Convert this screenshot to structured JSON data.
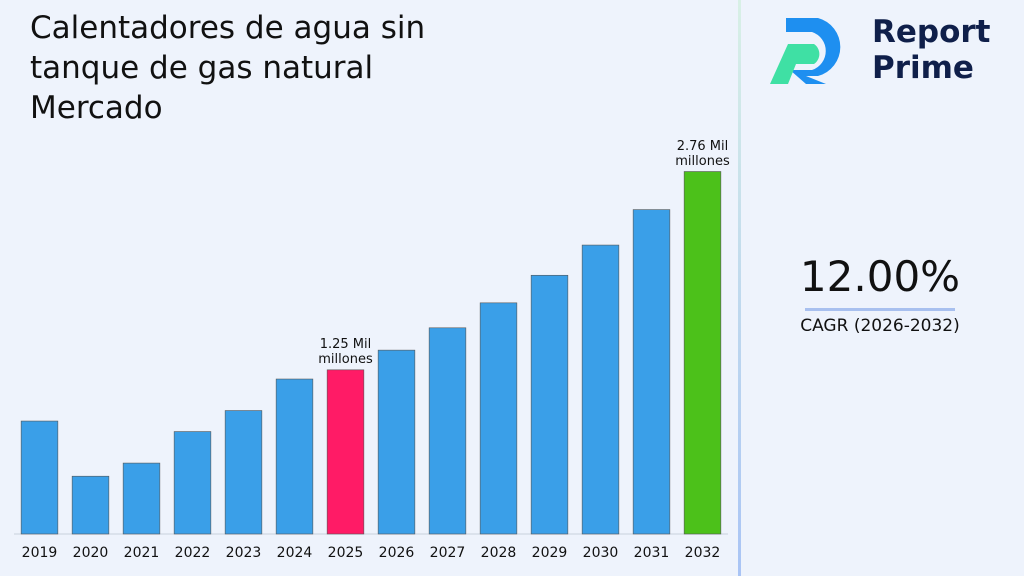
{
  "chart_data": {
    "type": "bar",
    "title": "Calentadores de agua sin tanque de gas natural Mercado",
    "categories": [
      "2019",
      "2020",
      "2021",
      "2022",
      "2023",
      "2024",
      "2025",
      "2026",
      "2027",
      "2028",
      "2029",
      "2030",
      "2031",
      "2032"
    ],
    "values": [
      0.86,
      0.44,
      0.54,
      0.78,
      0.94,
      1.18,
      1.25,
      1.4,
      1.57,
      1.76,
      1.97,
      2.2,
      2.47,
      2.76
    ],
    "value_labels": [
      null,
      null,
      null,
      null,
      null,
      null,
      "1.25 Mil millones",
      null,
      null,
      null,
      null,
      null,
      null,
      "2.76 Mil millones"
    ],
    "colors": [
      "#3a9fe8",
      "#3a9fe8",
      "#3a9fe8",
      "#3a9fe8",
      "#3a9fe8",
      "#3a9fe8",
      "#ff1b66",
      "#3a9fe8",
      "#3a9fe8",
      "#3a9fe8",
      "#3a9fe8",
      "#3a9fe8",
      "#3a9fe8",
      "#4cc11a"
    ],
    "ylim": [
      0,
      3.0
    ],
    "cagr": "12.00%",
    "cagr_label": "CAGR (2026-2032)",
    "brand": [
      "Report",
      "Prime"
    ]
  }
}
